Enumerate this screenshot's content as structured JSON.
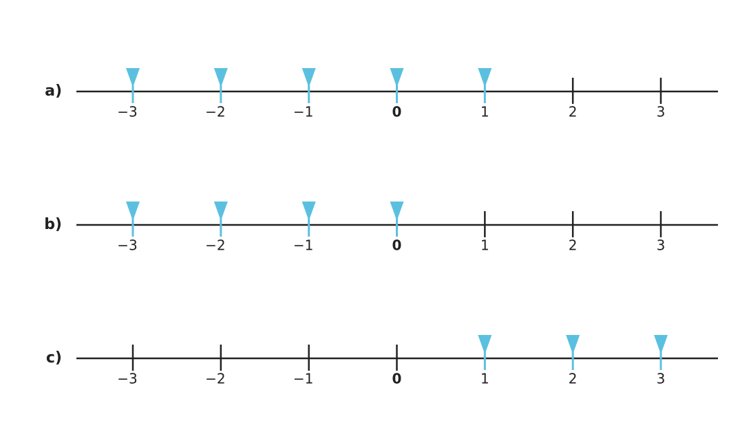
{
  "number_lines": [
    {
      "label": "a)",
      "ticks": [
        {
          "value": -3,
          "label": "−3"
        },
        {
          "value": -2,
          "label": "−2"
        },
        {
          "value": -1,
          "label": "−1"
        },
        0,
        1,
        2,
        3
      ],
      "marked": [
        -3,
        -2,
        -1,
        0,
        1
      ]
    },
    {
      "label": "b)",
      "ticks": [
        {
          "value": -3,
          "label": "−3"
        },
        {
          "value": -2,
          "label": "−2"
        },
        {
          "value": -1,
          "label": "−1"
        },
        0,
        1,
        2,
        3
      ],
      "marked": [
        -3,
        -2,
        -1,
        0
      ]
    },
    {
      "label": "c)",
      "ticks": [
        {
          "value": -3,
          "label": "−3"
        },
        {
          "value": -2,
          "label": "−2"
        },
        {
          "value": -1,
          "label": "−1"
        },
        0,
        1,
        2,
        3
      ],
      "marked": [
        1,
        2,
        3
      ]
    }
  ]
}
